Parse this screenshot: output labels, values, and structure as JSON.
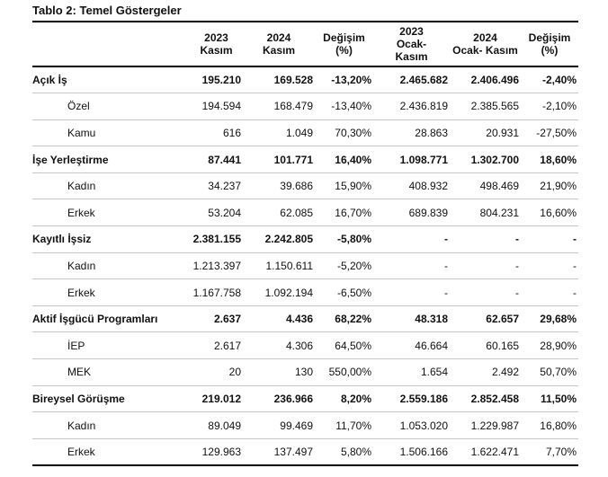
{
  "title": "Tablo 2: Temel Göstergeler",
  "colors": {
    "background": "#ffffff",
    "text": "#111111",
    "rule_strong": "#000000",
    "rule_light": "#c6c6c6"
  },
  "chart_data": {
    "type": "table",
    "title": "Tablo 2: Temel Göstergeler",
    "headers": [
      "",
      "2023\nKasım",
      "2024\nKasım",
      "Değişim\n(%)",
      "2023\nOcak-\nKasım",
      "2024\nOcak- Kasım",
      "Değişim\n(%)"
    ],
    "rows": [
      {
        "label": "Açık İş",
        "level": 0,
        "values": [
          "195.210",
          "169.528",
          "-13,20%",
          "2.465.682",
          "2.406.496",
          "-2,40%"
        ]
      },
      {
        "label": "Özel",
        "level": 1,
        "values": [
          "194.594",
          "168.479",
          "-13,40%",
          "2.436.819",
          "2.385.565",
          "-2,10%"
        ]
      },
      {
        "label": "Kamu",
        "level": 1,
        "values": [
          "616",
          "1.049",
          "70,30%",
          "28.863",
          "20.931",
          "-27,50%"
        ]
      },
      {
        "label": "İşe Yerleştirme",
        "level": 0,
        "values": [
          "87.441",
          "101.771",
          "16,40%",
          "1.098.771",
          "1.302.700",
          "18,60%"
        ]
      },
      {
        "label": "Kadın",
        "level": 1,
        "values": [
          "34.237",
          "39.686",
          "15,90%",
          "408.932",
          "498.469",
          "21,90%"
        ]
      },
      {
        "label": "Erkek",
        "level": 1,
        "values": [
          "53.204",
          "62.085",
          "16,70%",
          "689.839",
          "804.231",
          "16,60%"
        ]
      },
      {
        "label": "Kayıtlı İşsiz",
        "level": 0,
        "values": [
          "2.381.155",
          "2.242.805",
          "-5,80%",
          "-",
          "-",
          "-"
        ]
      },
      {
        "label": "Kadın",
        "level": 1,
        "values": [
          "1.213.397",
          "1.150.611",
          "-5,20%",
          "-",
          "-",
          "-"
        ]
      },
      {
        "label": "Erkek",
        "level": 1,
        "values": [
          "1.167.758",
          "1.092.194",
          "-6,50%",
          "-",
          "-",
          "-"
        ]
      },
      {
        "label": "Aktif İşgücü Programları",
        "level": 0,
        "values": [
          "2.637",
          "4.436",
          "68,22%",
          "48.318",
          "62.657",
          "29,68%"
        ]
      },
      {
        "label": "İEP",
        "level": 1,
        "values": [
          "2.617",
          "4.306",
          "64,50%",
          "46.664",
          "60.165",
          "28,90%"
        ]
      },
      {
        "label": "MEK",
        "level": 1,
        "values": [
          "20",
          "130",
          "550,00%",
          "1.654",
          "2.492",
          "50,70%"
        ]
      },
      {
        "label": "Bireysel Görüşme",
        "level": 0,
        "values": [
          "219.012",
          "236.966",
          "8,20%",
          "2.559.186",
          "2.852.458",
          "11,50%"
        ]
      },
      {
        "label": "Kadın",
        "level": 1,
        "values": [
          "89.049",
          "99.469",
          "11,70%",
          "1.053.020",
          "1.229.987",
          "16,80%"
        ]
      },
      {
        "label": "Erkek",
        "level": 1,
        "values": [
          "129.963",
          "137.497",
          "5,80%",
          "1.506.166",
          "1.622.471",
          "7,70%"
        ]
      }
    ]
  }
}
